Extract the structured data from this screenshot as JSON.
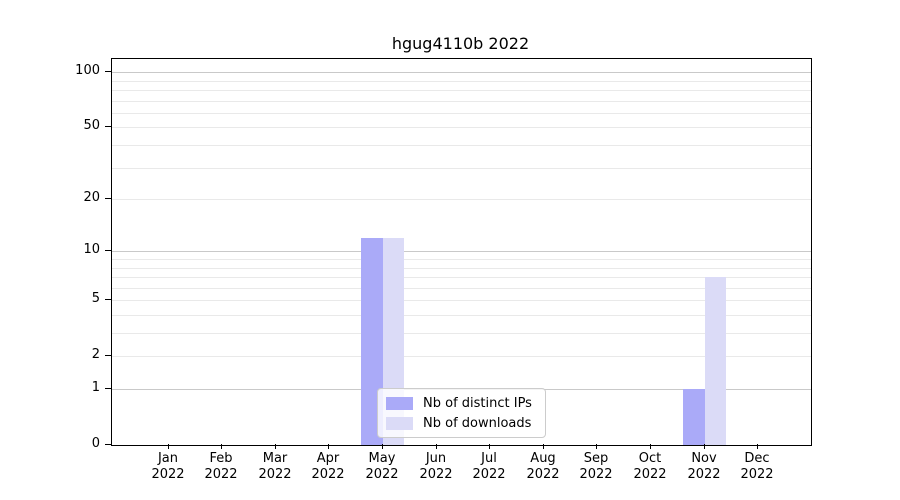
{
  "chart_data": {
    "type": "bar",
    "title": "hgug4110b 2022",
    "scale": "log1p",
    "months": [
      "Jan",
      "Feb",
      "Mar",
      "Apr",
      "May",
      "Jun",
      "Jul",
      "Aug",
      "Sep",
      "Oct",
      "Nov",
      "Dec"
    ],
    "year": "2022",
    "series": [
      {
        "name": "Nb of distinct IPs",
        "color": "#aaaaf8",
        "values": [
          0,
          0,
          0,
          0,
          12,
          0,
          0,
          0,
          0,
          0,
          1,
          0
        ]
      },
      {
        "name": "Nb of downloads",
        "color": "#dbdbf7",
        "values": [
          0,
          0,
          0,
          0,
          12,
          0,
          0,
          0,
          0,
          0,
          7,
          0
        ]
      }
    ],
    "yticks": [
      0,
      1,
      2,
      5,
      10,
      20,
      50,
      100
    ],
    "ylim": [
      0,
      117
    ],
    "grid": {
      "major_values": [
        1,
        10,
        100
      ],
      "minor_values": [
        2,
        3,
        4,
        6,
        7,
        8,
        9,
        20,
        30,
        40,
        50,
        60,
        70,
        80,
        90
      ],
      "mid_values": [
        5
      ],
      "major_color": "#c9c9c9",
      "minor_color": "#e9e9e9"
    },
    "legend_position": "lower center",
    "axis_color": "#000000",
    "background_color": "#ffffff"
  }
}
